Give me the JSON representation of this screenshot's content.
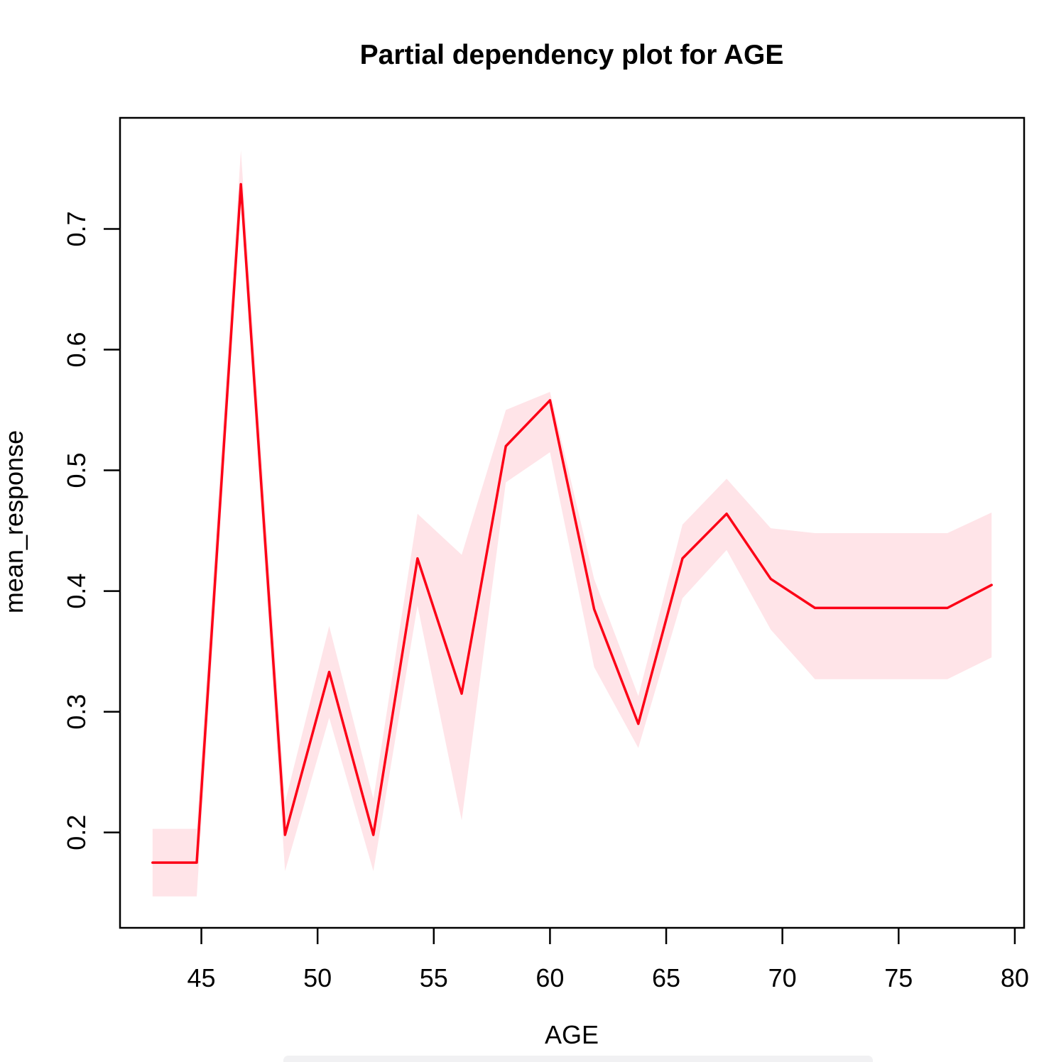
{
  "title": "Partial dependency plot for AGE",
  "chart_data": {
    "type": "line",
    "title": "Partial dependency plot for AGE",
    "xlabel": "AGE",
    "ylabel": "mean_response",
    "x": [
      42.9,
      44.8,
      46.7,
      48.6,
      50.5,
      52.4,
      54.3,
      56.2,
      58.1,
      60.0,
      61.9,
      63.8,
      65.7,
      67.6,
      69.5,
      71.4,
      73.3,
      75.2,
      77.1,
      79.0
    ],
    "series": [
      {
        "name": "mean_response",
        "values": [
          0.175,
          0.175,
          0.737,
          0.198,
          0.333,
          0.198,
          0.427,
          0.315,
          0.52,
          0.558,
          0.385,
          0.29,
          0.427,
          0.464,
          0.41,
          0.386,
          0.386,
          0.386,
          0.386,
          0.405
        ]
      },
      {
        "name": "lower_bound",
        "values": [
          0.147,
          0.147,
          0.722,
          0.168,
          0.295,
          0.168,
          0.388,
          0.21,
          0.49,
          0.515,
          0.337,
          0.27,
          0.394,
          0.434,
          0.368,
          0.327,
          0.327,
          0.327,
          0.327,
          0.345
        ]
      },
      {
        "name": "upper_bound",
        "values": [
          0.203,
          0.203,
          0.765,
          0.225,
          0.371,
          0.228,
          0.464,
          0.43,
          0.55,
          0.565,
          0.41,
          0.313,
          0.455,
          0.493,
          0.452,
          0.448,
          0.448,
          0.448,
          0.448,
          0.465
        ]
      }
    ],
    "x_ticks": [
      45,
      50,
      55,
      60,
      65,
      70,
      75,
      80
    ],
    "y_ticks": [
      0.2,
      0.3,
      0.4,
      0.5,
      0.6,
      0.7
    ],
    "xlim": [
      41.5,
      80.4
    ],
    "ylim": [
      0.121,
      0.792
    ],
    "grid": false,
    "legend": "none",
    "colors": {
      "line": "#fc0016",
      "band": "#ffe4e8",
      "axis": "#000000",
      "background": "#ffffff"
    }
  }
}
